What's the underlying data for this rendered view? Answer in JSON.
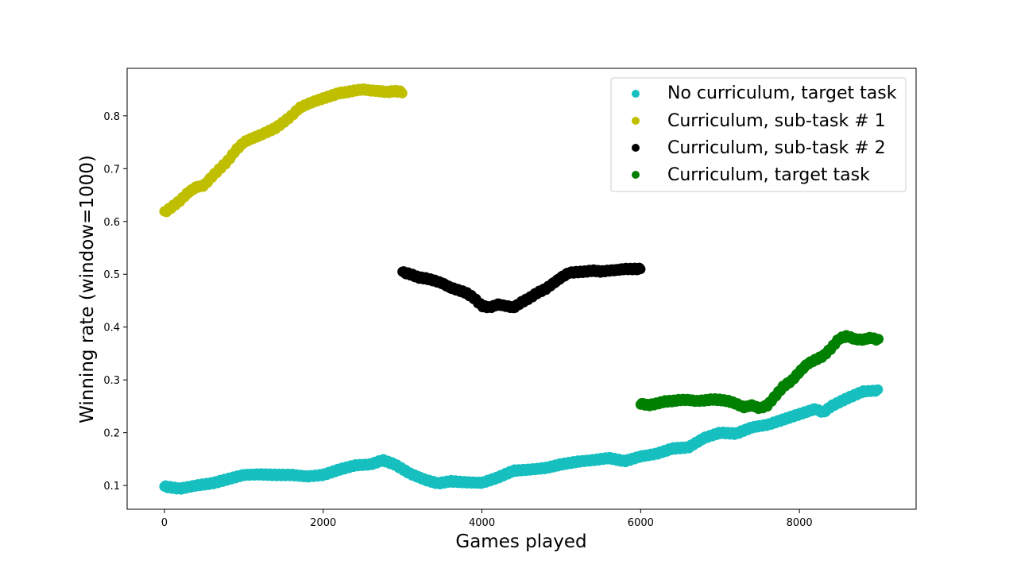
{
  "chart_data": {
    "type": "scatter",
    "title": "",
    "xlabel": "Games played",
    "ylabel": "Winning rate (window=1000)",
    "xlim": [
      -470,
      9470
    ],
    "ylim": [
      0.055,
      0.89
    ],
    "xticks": [
      0,
      2000,
      4000,
      6000,
      8000
    ],
    "yticks": [
      0.1,
      0.2,
      0.3,
      0.4,
      0.5,
      0.6,
      0.7,
      0.8
    ],
    "ytick_labels": [
      "0.1",
      "0.2",
      "0.3",
      "0.4",
      "0.5",
      "0.6",
      "0.7",
      "0.8"
    ],
    "grid": false,
    "legend_position": "top-right",
    "series": [
      {
        "name": "No curriculum, target task",
        "color": "#17bfbf",
        "x_range": [
          0,
          9000
        ],
        "points": [
          [
            0,
            0.098
          ],
          [
            200,
            0.094
          ],
          [
            400,
            0.1
          ],
          [
            600,
            0.104
          ],
          [
            800,
            0.112
          ],
          [
            1000,
            0.12
          ],
          [
            1200,
            0.121
          ],
          [
            1400,
            0.12
          ],
          [
            1600,
            0.12
          ],
          [
            1800,
            0.117
          ],
          [
            2000,
            0.12
          ],
          [
            2200,
            0.13
          ],
          [
            2400,
            0.138
          ],
          [
            2600,
            0.14
          ],
          [
            2750,
            0.148
          ],
          [
            2900,
            0.14
          ],
          [
            3100,
            0.122
          ],
          [
            3300,
            0.11
          ],
          [
            3450,
            0.104
          ],
          [
            3600,
            0.108
          ],
          [
            3800,
            0.106
          ],
          [
            4000,
            0.105
          ],
          [
            4200,
            0.115
          ],
          [
            4400,
            0.128
          ],
          [
            4600,
            0.13
          ],
          [
            4800,
            0.133
          ],
          [
            5000,
            0.14
          ],
          [
            5200,
            0.145
          ],
          [
            5400,
            0.148
          ],
          [
            5600,
            0.152
          ],
          [
            5800,
            0.146
          ],
          [
            6000,
            0.155
          ],
          [
            6200,
            0.16
          ],
          [
            6400,
            0.17
          ],
          [
            6600,
            0.172
          ],
          [
            6800,
            0.19
          ],
          [
            7000,
            0.2
          ],
          [
            7200,
            0.198
          ],
          [
            7400,
            0.21
          ],
          [
            7600,
            0.215
          ],
          [
            7800,
            0.225
          ],
          [
            8000,
            0.235
          ],
          [
            8200,
            0.245
          ],
          [
            8300,
            0.238
          ],
          [
            8400,
            0.25
          ],
          [
            8600,
            0.265
          ],
          [
            8800,
            0.278
          ],
          [
            9000,
            0.28
          ]
        ]
      },
      {
        "name": "Curriculum, sub-task # 1",
        "color": "#bfbf00",
        "x_range": [
          0,
          3000
        ],
        "points": [
          [
            0,
            0.617
          ],
          [
            100,
            0.628
          ],
          [
            200,
            0.64
          ],
          [
            300,
            0.655
          ],
          [
            400,
            0.665
          ],
          [
            500,
            0.668
          ],
          [
            600,
            0.685
          ],
          [
            700,
            0.7
          ],
          [
            800,
            0.715
          ],
          [
            900,
            0.735
          ],
          [
            1000,
            0.75
          ],
          [
            1100,
            0.757
          ],
          [
            1200,
            0.763
          ],
          [
            1300,
            0.77
          ],
          [
            1400,
            0.777
          ],
          [
            1500,
            0.788
          ],
          [
            1600,
            0.8
          ],
          [
            1700,
            0.815
          ],
          [
            1800,
            0.822
          ],
          [
            1900,
            0.828
          ],
          [
            2000,
            0.833
          ],
          [
            2100,
            0.838
          ],
          [
            2200,
            0.843
          ],
          [
            2300,
            0.845
          ],
          [
            2400,
            0.848
          ],
          [
            2500,
            0.85
          ],
          [
            2600,
            0.848
          ],
          [
            2700,
            0.847
          ],
          [
            2800,
            0.845
          ],
          [
            2900,
            0.847
          ],
          [
            3000,
            0.845
          ]
        ]
      },
      {
        "name": "Curriculum, sub-task # 2",
        "color": "#000000",
        "x_range": [
          3000,
          6000
        ],
        "points": [
          [
            3000,
            0.504
          ],
          [
            3100,
            0.5
          ],
          [
            3200,
            0.494
          ],
          [
            3300,
            0.492
          ],
          [
            3400,
            0.488
          ],
          [
            3500,
            0.483
          ],
          [
            3600,
            0.475
          ],
          [
            3700,
            0.47
          ],
          [
            3800,
            0.465
          ],
          [
            3900,
            0.455
          ],
          [
            4000,
            0.44
          ],
          [
            4100,
            0.437
          ],
          [
            4200,
            0.443
          ],
          [
            4300,
            0.44
          ],
          [
            4400,
            0.437
          ],
          [
            4500,
            0.447
          ],
          [
            4600,
            0.455
          ],
          [
            4700,
            0.465
          ],
          [
            4800,
            0.472
          ],
          [
            4900,
            0.483
          ],
          [
            5000,
            0.494
          ],
          [
            5100,
            0.503
          ],
          [
            5200,
            0.504
          ],
          [
            5300,
            0.505
          ],
          [
            5400,
            0.507
          ],
          [
            5500,
            0.505
          ],
          [
            5600,
            0.507
          ],
          [
            5700,
            0.508
          ],
          [
            5800,
            0.51
          ],
          [
            5900,
            0.51
          ],
          [
            6000,
            0.51
          ]
        ]
      },
      {
        "name": "Curriculum, target task",
        "color": "#008000",
        "x_range": [
          6000,
          9000
        ],
        "points": [
          [
            6000,
            0.255
          ],
          [
            6100,
            0.252
          ],
          [
            6200,
            0.255
          ],
          [
            6300,
            0.259
          ],
          [
            6400,
            0.26
          ],
          [
            6500,
            0.262
          ],
          [
            6600,
            0.262
          ],
          [
            6700,
            0.26
          ],
          [
            6800,
            0.261
          ],
          [
            6900,
            0.263
          ],
          [
            7000,
            0.262
          ],
          [
            7100,
            0.26
          ],
          [
            7200,
            0.255
          ],
          [
            7300,
            0.248
          ],
          [
            7400,
            0.252
          ],
          [
            7500,
            0.246
          ],
          [
            7600,
            0.252
          ],
          [
            7700,
            0.27
          ],
          [
            7800,
            0.288
          ],
          [
            7900,
            0.298
          ],
          [
            8000,
            0.315
          ],
          [
            8100,
            0.33
          ],
          [
            8200,
            0.338
          ],
          [
            8300,
            0.345
          ],
          [
            8400,
            0.36
          ],
          [
            8500,
            0.378
          ],
          [
            8600,
            0.383
          ],
          [
            8700,
            0.377
          ],
          [
            8800,
            0.376
          ],
          [
            8900,
            0.38
          ],
          [
            9000,
            0.375
          ]
        ]
      }
    ]
  }
}
